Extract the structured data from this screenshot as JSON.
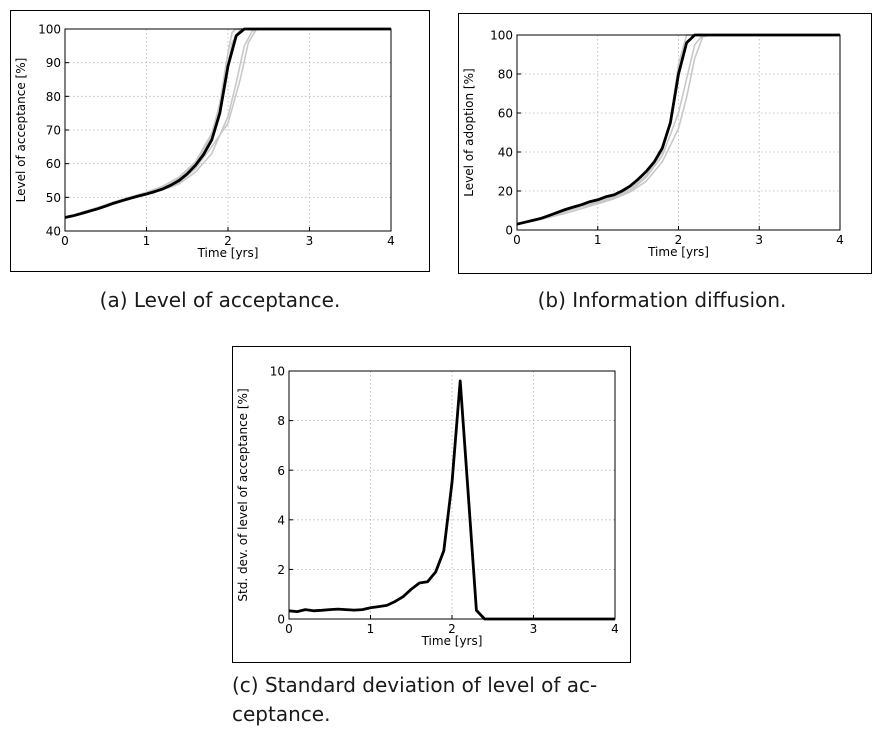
{
  "chart_data": [
    {
      "type": "line",
      "xlabel": "Time [yrs]",
      "ylabel": "Level of acceptance [%]",
      "xlim": [
        0,
        4
      ],
      "ylim": [
        40,
        100
      ],
      "xticks": [
        0,
        1,
        2,
        3,
        4
      ],
      "yticks": [
        40,
        50,
        60,
        70,
        80,
        90,
        100
      ],
      "grid": true,
      "legend": "none",
      "colors": {
        "mean": "#000000",
        "runs": "#c8c8c8"
      },
      "series": [
        {
          "x": [
            0,
            0.1,
            0.2,
            0.3,
            0.4,
            0.5,
            0.6,
            0.7,
            0.8,
            0.9,
            1.0,
            1.1,
            1.2,
            1.3,
            1.4,
            1.5,
            1.6,
            1.7,
            1.8,
            1.9,
            2.0,
            2.1,
            2.2,
            2.3,
            2.4,
            4.0
          ],
          "y": [
            44,
            44.5,
            45.2,
            45.9,
            46.6,
            47.4,
            48.3,
            49,
            49.7,
            50.4,
            51,
            51.7,
            52.5,
            53.6,
            55,
            57,
            59.5,
            62.7,
            67,
            75,
            89,
            98,
            100,
            100,
            100,
            100
          ]
        },
        {
          "x": [
            0,
            0.2,
            0.4,
            0.6,
            0.8,
            1.0,
            1.2,
            1.4,
            1.6,
            1.8,
            1.9,
            2.0,
            2.05,
            2.1,
            2.2,
            4.0
          ],
          "y": [
            44,
            45.3,
            46.8,
            48.5,
            50,
            51.3,
            53,
            55.6,
            60,
            68,
            78,
            93,
            99,
            100,
            100,
            100
          ]
        },
        {
          "x": [
            0,
            0.2,
            0.4,
            0.6,
            0.8,
            1.0,
            1.2,
            1.4,
            1.6,
            1.8,
            2.0,
            2.1,
            2.2,
            2.3,
            2.4,
            4.0
          ],
          "y": [
            44,
            45,
            46.4,
            48,
            49.5,
            50.8,
            52.2,
            54,
            57.5,
            63,
            74,
            84,
            95,
            99.5,
            100,
            100
          ]
        },
        {
          "x": [
            0,
            0.2,
            0.4,
            0.6,
            0.8,
            1.0,
            1.2,
            1.4,
            1.6,
            1.8,
            2.0,
            2.15,
            2.25,
            2.35,
            4.0
          ],
          "y": [
            44,
            45.1,
            46.6,
            48.2,
            49.8,
            51,
            52.5,
            54.5,
            58.5,
            65,
            72,
            85,
            96,
            100,
            100
          ]
        },
        {
          "x": [
            0,
            0.2,
            0.4,
            0.6,
            0.8,
            1.0,
            1.2,
            1.4,
            1.6,
            1.8,
            1.95,
            2.05,
            2.15,
            4.0
          ],
          "y": [
            44,
            45.4,
            47,
            48.6,
            50.1,
            51.5,
            53.3,
            56,
            60.5,
            69,
            82,
            96,
            100,
            100
          ]
        }
      ]
    },
    {
      "type": "line",
      "xlabel": "Time [yrs]",
      "ylabel": "Level of adoption [%]",
      "xlim": [
        0,
        4
      ],
      "ylim": [
        0,
        100
      ],
      "xticks": [
        0,
        1,
        2,
        3,
        4
      ],
      "yticks": [
        0,
        20,
        40,
        60,
        80,
        100
      ],
      "grid": true,
      "legend": "none",
      "colors": {
        "mean": "#000000",
        "runs": "#c8c8c8"
      },
      "series": [
        {
          "x": [
            0,
            0.1,
            0.2,
            0.3,
            0.4,
            0.5,
            0.6,
            0.7,
            0.8,
            0.9,
            1.0,
            1.1,
            1.2,
            1.3,
            1.4,
            1.5,
            1.6,
            1.7,
            1.8,
            1.9,
            2.0,
            2.1,
            2.2,
            2.3,
            4.0
          ],
          "y": [
            3,
            4,
            5,
            6,
            7.5,
            9,
            10.5,
            11.8,
            13,
            14.5,
            15.5,
            17,
            18,
            20,
            22.5,
            26,
            30,
            35,
            42,
            55,
            80,
            96,
            100,
            100,
            100
          ]
        },
        {
          "x": [
            0,
            0.2,
            0.4,
            0.6,
            0.8,
            1.0,
            1.2,
            1.4,
            1.6,
            1.8,
            1.9,
            2.0,
            2.1,
            4.0
          ],
          "y": [
            3,
            5,
            7.5,
            10,
            12.5,
            14.5,
            17,
            21,
            28,
            40,
            56,
            85,
            100,
            100
          ]
        },
        {
          "x": [
            0,
            0.2,
            0.4,
            0.6,
            0.8,
            1.0,
            1.2,
            1.4,
            1.6,
            1.8,
            2.0,
            2.1,
            2.2,
            2.3,
            2.4,
            4.0
          ],
          "y": [
            3,
            4.5,
            6.5,
            8.5,
            11,
            13.5,
            16,
            19.5,
            25,
            35,
            52,
            68,
            88,
            99,
            100,
            100
          ]
        },
        {
          "x": [
            0,
            0.2,
            0.4,
            0.6,
            0.8,
            1.0,
            1.2,
            1.4,
            1.6,
            1.8,
            2.0,
            2.2,
            2.3,
            4.0
          ],
          "y": [
            3,
            4.8,
            7,
            9.5,
            12,
            14,
            16.5,
            20,
            27,
            38,
            60,
            95,
            100,
            100
          ]
        }
      ]
    },
    {
      "type": "line",
      "xlabel": "Time [yrs]",
      "ylabel": "Std. dev. of level of acceptance [%]",
      "xlim": [
        0,
        4
      ],
      "ylim": [
        0,
        10
      ],
      "xticks": [
        0,
        1,
        2,
        3,
        4
      ],
      "yticks": [
        0,
        2,
        4,
        6,
        8,
        10
      ],
      "grid": true,
      "legend": "none",
      "colors": {
        "mean": "#000000"
      },
      "series": [
        {
          "x": [
            0,
            0.1,
            0.2,
            0.3,
            0.4,
            0.5,
            0.6,
            0.7,
            0.8,
            0.9,
            1.0,
            1.1,
            1.2,
            1.3,
            1.4,
            1.5,
            1.6,
            1.7,
            1.8,
            1.9,
            2.0,
            2.1,
            2.2,
            2.3,
            2.4,
            3.0,
            4.0
          ],
          "y": [
            0.33,
            0.3,
            0.38,
            0.33,
            0.35,
            0.38,
            0.4,
            0.38,
            0.36,
            0.38,
            0.45,
            0.5,
            0.55,
            0.7,
            0.9,
            1.2,
            1.45,
            1.5,
            1.9,
            2.75,
            5.5,
            9.6,
            5.0,
            0.35,
            0.0,
            0.0,
            0.0
          ]
        }
      ]
    }
  ],
  "captions": {
    "a": "(a) Level of acceptance.",
    "b": "(b) Information diffusion.",
    "c_line1": "(c) Standard deviation of level of ac-",
    "c_line2": "ceptance."
  }
}
